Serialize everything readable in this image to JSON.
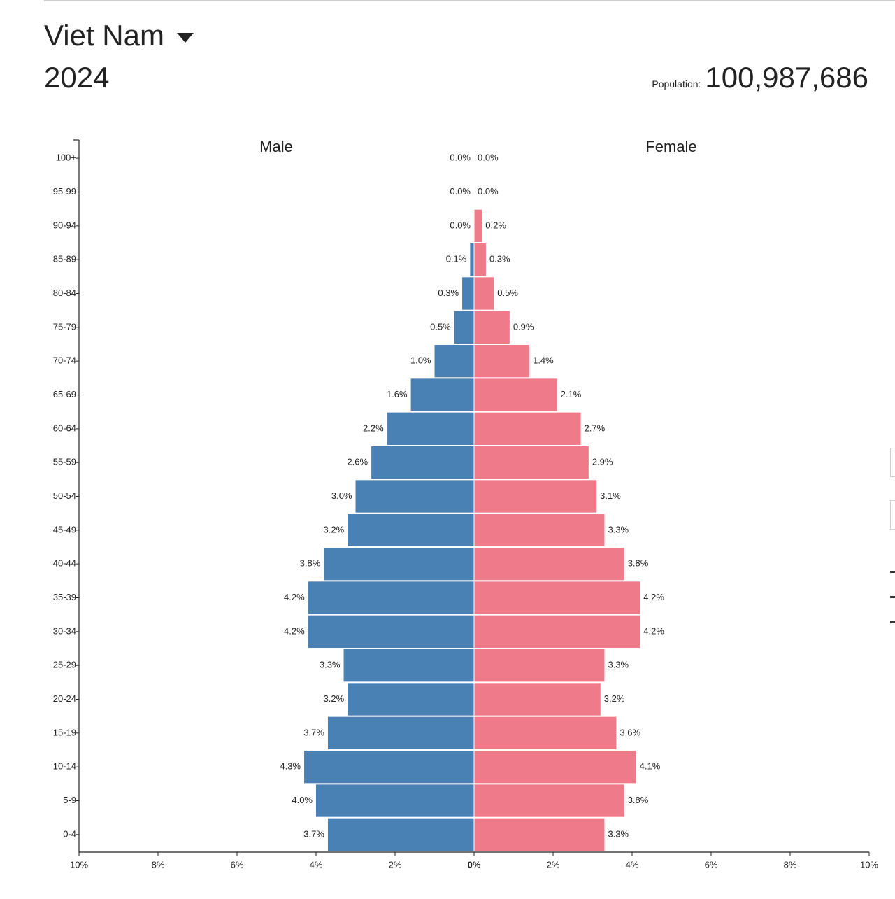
{
  "header": {
    "country": "Viet Nam",
    "year": "2024",
    "population_label": "Population:",
    "population_value": "100,987,686"
  },
  "colors": {
    "male": "#4a81b4",
    "female": "#ef7b8a"
  },
  "chart_data": {
    "type": "bar",
    "orientation": "horizontal-pyramid",
    "categories": [
      "100+",
      "95-99",
      "90-94",
      "85-89",
      "80-84",
      "75-79",
      "70-74",
      "65-69",
      "60-64",
      "55-59",
      "50-54",
      "45-49",
      "40-44",
      "35-39",
      "30-34",
      "25-29",
      "20-24",
      "15-19",
      "10-14",
      "5-9",
      "0-4"
    ],
    "series": [
      {
        "name": "Male",
        "values": [
          0.0,
          0.0,
          0.0,
          0.1,
          0.3,
          0.5,
          1.0,
          1.6,
          2.2,
          2.6,
          3.0,
          3.2,
          3.8,
          4.2,
          4.2,
          3.3,
          3.2,
          3.7,
          4.3,
          4.0,
          3.7
        ],
        "labels": [
          "0.0%",
          "0.0%",
          "0.0%",
          "0.1%",
          "0.3%",
          "0.5%",
          "1.0%",
          "1.6%",
          "2.2%",
          "2.6%",
          "3.0%",
          "3.2%",
          "3.8%",
          "4.2%",
          "4.2%",
          "3.3%",
          "3.2%",
          "3.7%",
          "4.3%",
          "4.0%",
          "3.7%"
        ]
      },
      {
        "name": "Female",
        "values": [
          0.0,
          0.0,
          0.2,
          0.3,
          0.5,
          0.9,
          1.4,
          2.1,
          2.7,
          2.9,
          3.1,
          3.3,
          3.8,
          4.2,
          4.2,
          3.3,
          3.2,
          3.6,
          4.1,
          3.8,
          3.3
        ],
        "labels": [
          "0.0%",
          "0.0%",
          "0.2%",
          "0.3%",
          "0.5%",
          "0.9%",
          "1.4%",
          "2.1%",
          "2.7%",
          "2.9%",
          "3.1%",
          "3.3%",
          "3.8%",
          "4.2%",
          "4.2%",
          "3.3%",
          "3.2%",
          "3.6%",
          "4.1%",
          "3.8%",
          "3.3%"
        ]
      }
    ],
    "x_ticks": [
      "10%",
      "8%",
      "6%",
      "4%",
      "2%",
      "0%",
      "2%",
      "4%",
      "6%",
      "8%",
      "10%"
    ],
    "xlim": [
      -10,
      10
    ],
    "grid": false,
    "legend": "top"
  }
}
